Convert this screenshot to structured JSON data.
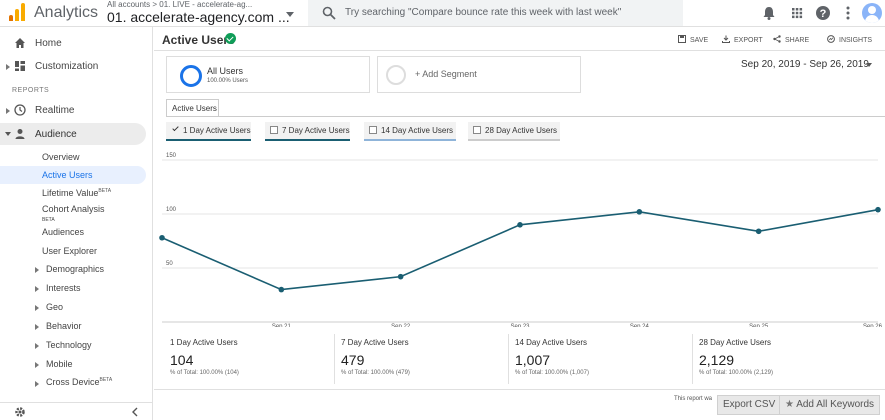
{
  "app": {
    "title": "Analytics",
    "account_crumb": "All accounts > 01. LIVE - accelerate-ag...",
    "account_name": "01. accelerate-agency.com ...",
    "search_placeholder": "Try searching \"Compare bounce rate this week with last week\"",
    "brand_colors": [
      "#f9ab00",
      "#e37400"
    ]
  },
  "topbar_icons": [
    "bell-icon",
    "apps-grid-icon",
    "help-icon",
    "more-vert-icon",
    "account-avatar"
  ],
  "sidebar": {
    "home": "Home",
    "customization": "Customization",
    "reports_label": "REPORTS",
    "realtime": "Realtime",
    "audience": "Audience",
    "sub_items": [
      {
        "label": "Overview",
        "badge": ""
      },
      {
        "label": "Active Users",
        "badge": "",
        "active": true
      },
      {
        "label": "Lifetime Value",
        "badge": "BETA"
      },
      {
        "label": "Cohort Analysis",
        "badge": "BETA"
      },
      {
        "label": "Audiences",
        "badge": ""
      },
      {
        "label": "User Explorer",
        "badge": ""
      },
      {
        "label": "Demographics",
        "badge": ""
      },
      {
        "label": "Interests",
        "badge": ""
      },
      {
        "label": "Geo",
        "badge": ""
      },
      {
        "label": "Behavior",
        "badge": ""
      },
      {
        "label": "Technology",
        "badge": ""
      },
      {
        "label": "Mobile",
        "badge": ""
      },
      {
        "label": "Cross Device",
        "badge": "BETA"
      }
    ]
  },
  "header": {
    "title": "Active Users",
    "actions": {
      "save": "SAVE",
      "export": "EXPORT",
      "share": "SHARE",
      "insights": "INSIGHTS"
    }
  },
  "segments": {
    "all_users": "All Users",
    "all_users_pct": "100.00% Users",
    "add_segment": "+ Add Segment"
  },
  "date_range": "Sep 20, 2019 - Sep 26, 2019",
  "tab_label": "Active Users",
  "toggles": [
    {
      "label": "1 Day Active Users",
      "checked": true,
      "color": "#1a5e72"
    },
    {
      "label": "7 Day Active Users",
      "checked": false,
      "color": "#1a5e72"
    },
    {
      "label": "14 Day Active Users",
      "checked": false,
      "color": "#8fb4d9"
    },
    {
      "label": "28 Day Active Users",
      "checked": false,
      "color": "#cccccc"
    }
  ],
  "chart_data": {
    "type": "line",
    "x": [
      "Sep 20",
      "Sep 21",
      "Sep 22",
      "Sep 23",
      "Sep 24",
      "Sep 25",
      "Sep 26"
    ],
    "x_tick_labels": [
      "Sep 21",
      "Sep 22",
      "Sep 23",
      "Sep 24",
      "Sep 25",
      "Sep 26"
    ],
    "y_ticks": [
      50,
      100,
      150
    ],
    "ylim": [
      0,
      150
    ],
    "grid": true,
    "series": [
      {
        "name": "1 Day Active Users",
        "values": [
          78,
          30,
          42,
          90,
          102,
          84,
          104
        ],
        "color": "#1a5e72"
      }
    ]
  },
  "metrics": [
    {
      "label": "1 Day Active Users",
      "value": "104",
      "sub": "% of Total: 100.00% (104)"
    },
    {
      "label": "7 Day Active Users",
      "value": "479",
      "sub": "% of Total: 100.00% (479)"
    },
    {
      "label": "14 Day Active Users",
      "value": "1,007",
      "sub": "% of Total: 100.00% (1,007)"
    },
    {
      "label": "28 Day Active Users",
      "value": "2,129",
      "sub": "% of Total: 100.00% (2,129)"
    }
  ],
  "footer": {
    "report_note": "This report wa",
    "export_csv": "Export CSV",
    "add_keywords": "Add All Keywords"
  }
}
